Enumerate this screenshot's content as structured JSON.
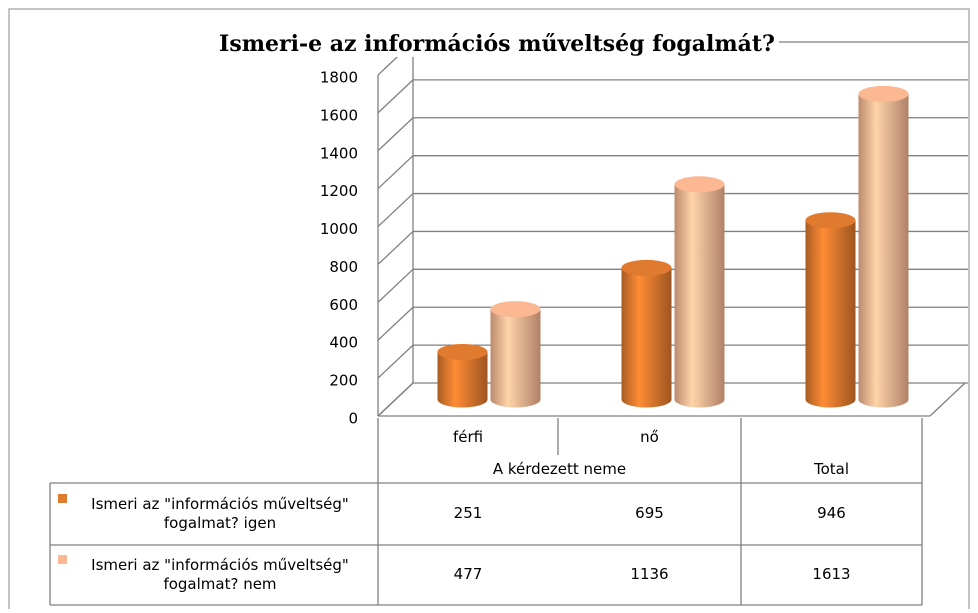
{
  "chart_data": {
    "type": "bar3d",
    "title": "Ismeri-e az információs műveltség fogalmát?",
    "categories": [
      "férfi",
      "nő",
      null
    ],
    "category_groups": [
      "A kérdezett neme",
      "A kérdezett neme",
      "Total"
    ],
    "series": [
      {
        "name": "Ismeri az \"információs műveltség\" fogalmat? igen",
        "color": "#e07a2e",
        "values": [
          251,
          695,
          946
        ]
      },
      {
        "name": "Ismeri az \"információs műveltség\" fogalmat? nem",
        "color": "#fbb893",
        "values": [
          477,
          1136,
          1613
        ]
      }
    ],
    "ylim": [
      0,
      1800
    ],
    "yticks": [
      0,
      200,
      400,
      600,
      800,
      1000,
      1200,
      1400,
      1600,
      1800
    ],
    "grid": true
  }
}
